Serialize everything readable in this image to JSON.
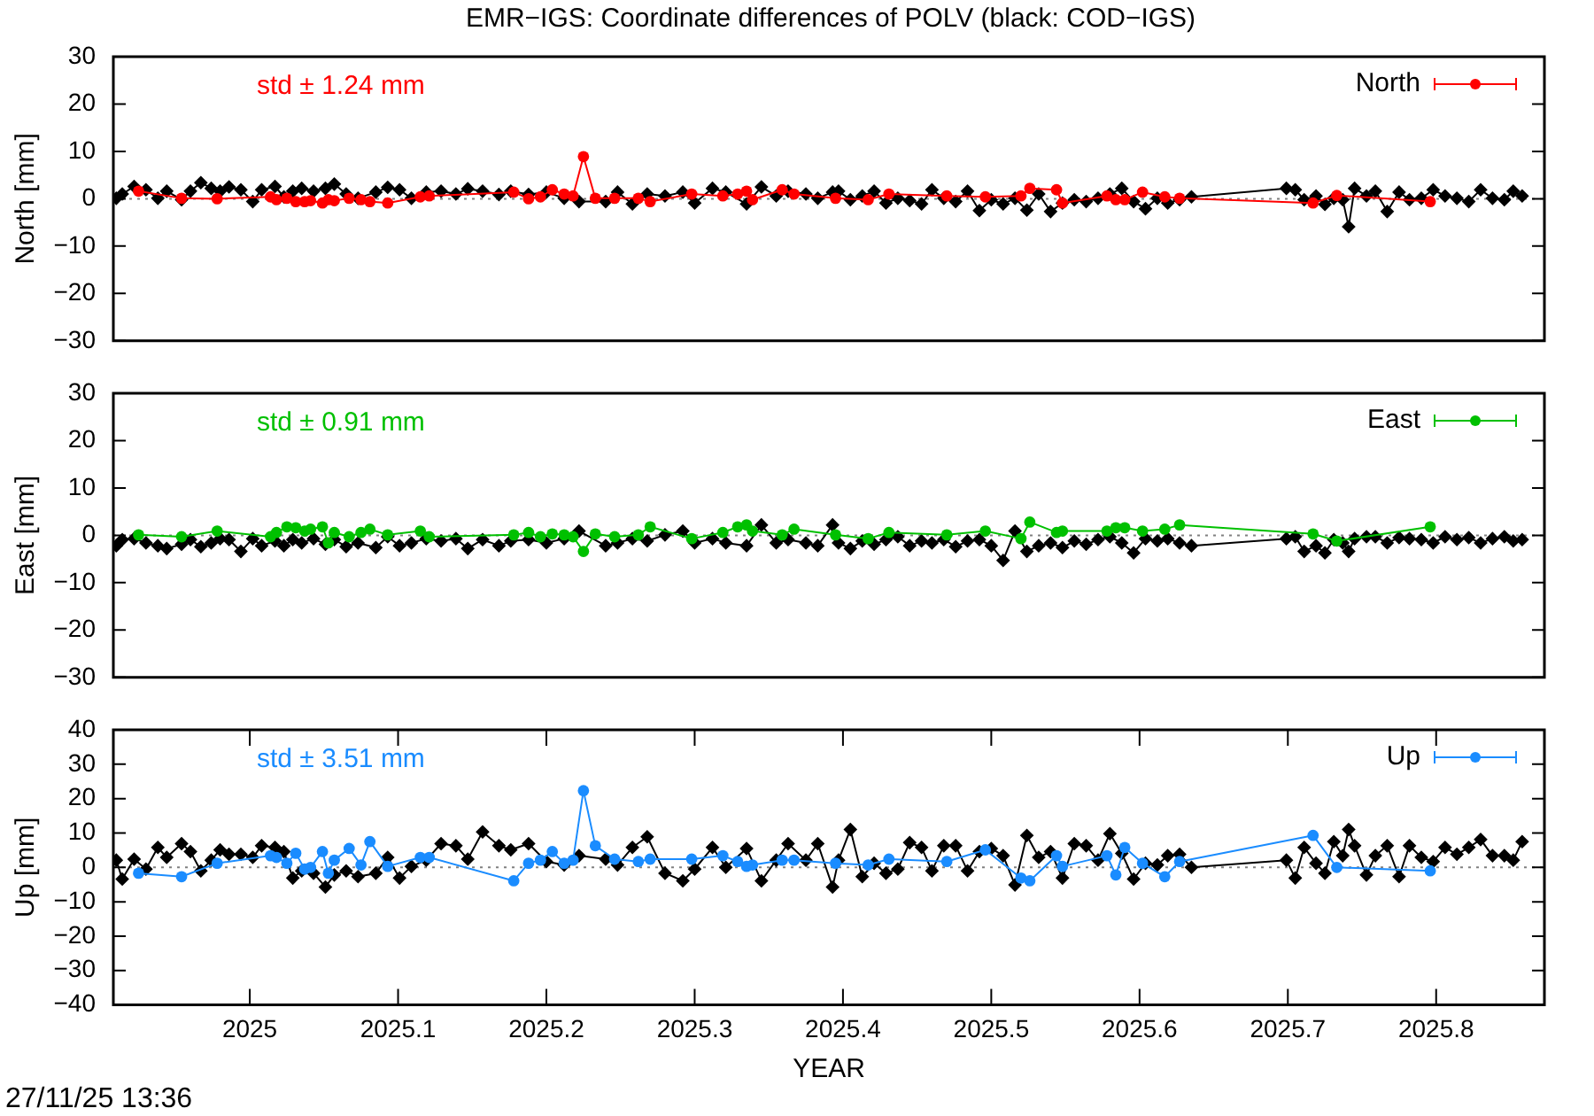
{
  "chart_data": [
    {
      "type": "line",
      "title": "EMR−IGS: Coordinate differences of POLV (black: COD−IGS)",
      "ylabel": "North [mm]",
      "annotations": [
        "std ± 1.24 mm"
      ],
      "xlim": [
        2024.908,
        2025.873
      ],
      "ylim": [
        -30,
        30
      ],
      "yticks": [
        {
          "value": -30,
          "label": "−30"
        },
        {
          "value": -20,
          "label": "−20"
        },
        {
          "value": -10,
          "label": "−10"
        },
        0,
        10,
        20,
        30
      ],
      "tick_labels": "y",
      "legend": "top right",
      "marker": "circle",
      "ref_lines": [
        {
          "axis": "y",
          "value": 0,
          "color": "#808080",
          "line_style": "dotted"
        }
      ],
      "series": [
        {
          "name": "North",
          "color": "#ff0000",
          "x": [
            2024.925,
            2024.954,
            2024.978,
            2025.014,
            2025.018,
            2025.025,
            2025.031,
            2025.037,
            2025.041,
            2025.049,
            2025.053,
            2025.057,
            2025.067,
            2025.075,
            2025.081,
            2025.093,
            2025.115,
            2025.121,
            2025.178,
            2025.188,
            2025.196,
            2025.204,
            2025.212,
            2025.218,
            2025.225,
            2025.233,
            2025.246,
            2025.262,
            2025.27,
            2025.298,
            2025.319,
            2025.329,
            2025.335,
            2025.339,
            2025.359,
            2025.367,
            2025.395,
            2025.417,
            2025.431,
            2025.47,
            2025.496,
            2025.52,
            2025.526,
            2025.544,
            2025.548,
            2025.578,
            2025.584,
            2025.59,
            2025.602,
            2025.617,
            2025.627,
            2025.717,
            2025.733,
            2025.796
          ],
          "values": [
            1.6,
            0.1,
            0.0,
            0.4,
            -0.2,
            0.1,
            -0.6,
            -0.6,
            -0.4,
            -0.9,
            -0.2,
            -0.4,
            0.1,
            -0.2,
            -0.6,
            -0.9,
            0.4,
            0.6,
            1.4,
            0.0,
            0.4,
            1.9,
            1.0,
            0.6,
            8.9,
            0.1,
            0.1,
            0.1,
            -0.6,
            1.0,
            0.6,
            1.0,
            1.6,
            -0.2,
            1.9,
            1.0,
            0.1,
            -0.2,
            1.0,
            0.6,
            0.4,
            0.6,
            2.2,
            1.9,
            -0.9,
            0.6,
            -0.2,
            -0.2,
            1.4,
            0.4,
            0.1,
            -0.9,
            0.7,
            -0.6
          ]
        },
        {
          "color": "#000000",
          "marker": "diamond",
          "x": [
            2024.91,
            2024.914,
            2024.922,
            2024.93,
            2024.938,
            2024.944,
            2024.954,
            2024.96,
            2024.967,
            2024.974,
            2024.98,
            2024.986,
            2024.994,
            2025.002,
            2025.008,
            2025.017,
            2025.023,
            2025.029,
            2025.035,
            2025.043,
            2025.051,
            2025.057,
            2025.065,
            2025.073,
            2025.085,
            2025.093,
            2025.101,
            2025.109,
            2025.119,
            2025.129,
            2025.139,
            2025.147,
            2025.157,
            2025.168,
            2025.176,
            2025.188,
            2025.2,
            2025.212,
            2025.222,
            2025.24,
            2025.248,
            2025.258,
            2025.268,
            2025.28,
            2025.292,
            2025.3,
            2025.312,
            2025.321,
            2025.335,
            2025.345,
            2025.355,
            2025.363,
            2025.375,
            2025.383,
            2025.393,
            2025.397,
            2025.405,
            2025.413,
            2025.421,
            2025.429,
            2025.437,
            2025.445,
            2025.453,
            2025.46,
            2025.468,
            2025.476,
            2025.484,
            2025.492,
            2025.5,
            2025.508,
            2025.516,
            2025.524,
            2025.532,
            2025.54,
            2025.548,
            2025.556,
            2025.564,
            2025.572,
            2025.58,
            2025.588,
            2025.596,
            2025.604,
            2025.612,
            2025.619,
            2025.627,
            2025.635,
            2025.699,
            2025.705,
            2025.711,
            2025.719,
            2025.725,
            2025.731,
            2025.737,
            2025.741,
            2025.745,
            2025.753,
            2025.759,
            2025.767,
            2025.775,
            2025.782,
            2025.79,
            2025.798,
            2025.806,
            2025.814,
            2025.822,
            2025.83,
            2025.838,
            2025.846,
            2025.852,
            2025.858
          ],
          "values": [
            0.1,
            1.0,
            2.6,
            1.9,
            0.1,
            1.6,
            -0.2,
            1.6,
            3.4,
            2.2,
            1.6,
            2.5,
            1.9,
            -0.6,
            1.9,
            2.6,
            0.4,
            1.6,
            2.2,
            1.6,
            2.2,
            3.1,
            1.0,
            0.1,
            1.4,
            2.4,
            1.9,
            0.1,
            1.4,
            1.6,
            1.0,
            2.1,
            1.6,
            0.9,
            1.6,
            0.9,
            1.4,
            0.1,
            -0.6,
            -0.6,
            1.4,
            -1.1,
            1.0,
            0.6,
            1.4,
            -0.9,
            2.2,
            1.4,
            -1.1,
            2.5,
            0.6,
            1.6,
            1.0,
            0.1,
            1.4,
            1.6,
            -0.2,
            0.6,
            1.6,
            -0.9,
            0.1,
            -0.4,
            -1.1,
            1.9,
            0.1,
            -0.6,
            1.6,
            -2.5,
            -0.2,
            -1.1,
            0.1,
            -2.4,
            1.0,
            -2.7,
            -0.9,
            -0.2,
            -0.6,
            0.1,
            1.0,
            2.2,
            -0.6,
            -2.1,
            0.1,
            -0.9,
            -0.2,
            0.4,
            2.2,
            1.9,
            -0.2,
            0.6,
            -1.2,
            0.1,
            -0.2,
            -5.9,
            2.2,
            0.6,
            1.6,
            -2.7,
            1.4,
            -0.2,
            0.1,
            1.9,
            0.6,
            0.1,
            -0.6,
            1.9,
            0.1,
            -0.2,
            1.6,
            0.6
          ]
        }
      ]
    },
    {
      "type": "line",
      "ylabel": "East [mm]",
      "annotations": [
        "std ± 0.91 mm"
      ],
      "xlim": [
        2024.908,
        2025.873
      ],
      "ylim": [
        -30,
        30
      ],
      "yticks": [
        {
          "value": -30,
          "label": "−30"
        },
        {
          "value": -20,
          "label": "−20"
        },
        {
          "value": -10,
          "label": "−10"
        },
        0,
        10,
        20,
        30
      ],
      "tick_labels": "y",
      "legend": "top right",
      "marker": "circle",
      "ref_lines": [
        {
          "axis": "y",
          "value": 0,
          "color": "#808080",
          "line_style": "dotted"
        }
      ],
      "series": [
        {
          "name": "East",
          "color": "#00c000",
          "x": [
            2024.925,
            2024.954,
            2024.978,
            2025.014,
            2025.018,
            2025.025,
            2025.031,
            2025.037,
            2025.041,
            2025.049,
            2025.053,
            2025.057,
            2025.067,
            2025.075,
            2025.081,
            2025.093,
            2025.115,
            2025.121,
            2025.178,
            2025.188,
            2025.196,
            2025.204,
            2025.212,
            2025.218,
            2025.225,
            2025.233,
            2025.246,
            2025.262,
            2025.27,
            2025.298,
            2025.319,
            2025.329,
            2025.335,
            2025.339,
            2025.359,
            2025.367,
            2025.395,
            2025.417,
            2025.431,
            2025.47,
            2025.496,
            2025.52,
            2025.526,
            2025.544,
            2025.548,
            2025.578,
            2025.584,
            2025.59,
            2025.602,
            2025.617,
            2025.627,
            2025.717,
            2025.733,
            2025.796
          ],
          "values": [
            0.1,
            -0.3,
            0.9,
            -0.3,
            0.6,
            1.8,
            1.6,
            0.9,
            1.3,
            1.8,
            -1.6,
            0.6,
            -0.3,
            0.6,
            1.3,
            0.1,
            0.9,
            -0.3,
            0.1,
            0.6,
            -0.3,
            0.3,
            0.1,
            -0.3,
            -3.4,
            0.3,
            -0.3,
            0.1,
            1.8,
            -0.7,
            0.6,
            1.8,
            2.2,
            0.9,
            0.1,
            1.3,
            0.1,
            -0.7,
            0.6,
            0.1,
            0.9,
            -0.7,
            2.8,
            0.6,
            0.9,
            0.9,
            1.6,
            1.6,
            0.9,
            1.3,
            2.2,
            0.3,
            -1.2,
            1.8
          ]
        },
        {
          "color": "#000000",
          "marker": "diamond",
          "x": [
            2024.91,
            2024.914,
            2024.922,
            2024.93,
            2024.938,
            2024.944,
            2024.954,
            2024.96,
            2024.967,
            2024.974,
            2024.98,
            2024.986,
            2024.994,
            2025.002,
            2025.008,
            2025.017,
            2025.023,
            2025.029,
            2025.035,
            2025.043,
            2025.051,
            2025.057,
            2025.065,
            2025.073,
            2025.085,
            2025.093,
            2025.101,
            2025.109,
            2025.119,
            2025.129,
            2025.139,
            2025.147,
            2025.157,
            2025.168,
            2025.176,
            2025.188,
            2025.2,
            2025.212,
            2025.222,
            2025.24,
            2025.248,
            2025.258,
            2025.268,
            2025.28,
            2025.292,
            2025.3,
            2025.312,
            2025.321,
            2025.335,
            2025.345,
            2025.355,
            2025.363,
            2025.375,
            2025.383,
            2025.393,
            2025.397,
            2025.405,
            2025.413,
            2025.421,
            2025.429,
            2025.437,
            2025.445,
            2025.453,
            2025.46,
            2025.468,
            2025.476,
            2025.484,
            2025.492,
            2025.5,
            2025.508,
            2025.516,
            2025.524,
            2025.532,
            2025.54,
            2025.548,
            2025.556,
            2025.564,
            2025.572,
            2025.58,
            2025.588,
            2025.596,
            2025.604,
            2025.612,
            2025.619,
            2025.627,
            2025.635,
            2025.699,
            2025.705,
            2025.711,
            2025.719,
            2025.725,
            2025.731,
            2025.737,
            2025.741,
            2025.745,
            2025.753,
            2025.759,
            2025.767,
            2025.775,
            2025.782,
            2025.79,
            2025.798,
            2025.806,
            2025.814,
            2025.822,
            2025.83,
            2025.838,
            2025.846,
            2025.852,
            2025.858
          ],
          "values": [
            -2.2,
            -0.9,
            -0.7,
            -1.6,
            -2.2,
            -2.8,
            -1.9,
            -0.9,
            -2.4,
            -1.6,
            -0.7,
            -0.9,
            -3.4,
            -0.7,
            -2.2,
            -1.2,
            -2.2,
            -0.9,
            -1.6,
            -0.7,
            -1.9,
            -0.9,
            -2.4,
            -1.6,
            -2.6,
            -0.3,
            -2.2,
            -1.6,
            -0.7,
            -1.2,
            -0.7,
            -2.8,
            -0.9,
            -2.2,
            -1.2,
            -0.9,
            -1.6,
            -0.7,
            0.9,
            -2.2,
            -1.6,
            -0.7,
            -1.2,
            0.1,
            0.9,
            -1.6,
            -0.7,
            -1.6,
            -2.2,
            2.2,
            -1.6,
            -0.9,
            -1.6,
            -2.2,
            2.2,
            -1.6,
            -2.8,
            -1.2,
            -1.9,
            -0.9,
            -0.3,
            -2.2,
            -1.2,
            -1.6,
            -0.9,
            -2.4,
            -1.2,
            -0.9,
            -2.2,
            -5.3,
            0.9,
            -3.4,
            -2.2,
            -1.6,
            -2.6,
            -1.2,
            -1.9,
            -0.9,
            -0.3,
            -1.6,
            -3.7,
            -0.7,
            -1.2,
            -0.7,
            -1.6,
            -2.2,
            -0.7,
            -0.3,
            -3.4,
            -2.2,
            -3.7,
            -0.9,
            -1.6,
            -3.4,
            -0.7,
            -0.3,
            -0.3,
            -1.6,
            -0.5,
            -0.7,
            -0.9,
            -1.6,
            -0.3,
            -0.9,
            -0.5,
            -1.6,
            -0.7,
            -0.3,
            -1.2,
            -0.9
          ]
        }
      ]
    },
    {
      "type": "line",
      "xlabel": "YEAR",
      "ylabel": "Up [mm]",
      "annotations": [
        "std ± 3.51 mm",
        "27/11/25 13:36"
      ],
      "xlim": [
        2024.908,
        2025.873
      ],
      "xticks": [
        2025,
        2025.1,
        2025.2,
        2025.3,
        2025.4,
        2025.5,
        2025.6,
        2025.7,
        2025.8
      ],
      "ylim": [
        -40,
        40
      ],
      "yticks": [
        {
          "value": -40,
          "label": "−40"
        },
        {
          "value": -30,
          "label": "−30"
        },
        {
          "value": -20,
          "label": "−20"
        },
        {
          "value": -10,
          "label": "−10"
        },
        0,
        10,
        20,
        30,
        40
      ],
      "legend": "top right",
      "marker": "circle",
      "ref_lines": [
        {
          "axis": "y",
          "value": 0,
          "color": "#808080",
          "line_style": "dotted"
        }
      ],
      "series": [
        {
          "name": "Up",
          "color": "#1a8cff",
          "x": [
            2024.925,
            2024.954,
            2024.978,
            2025.014,
            2025.018,
            2025.025,
            2025.031,
            2025.037,
            2025.041,
            2025.049,
            2025.053,
            2025.057,
            2025.067,
            2025.075,
            2025.081,
            2025.093,
            2025.115,
            2025.121,
            2025.178,
            2025.188,
            2025.196,
            2025.204,
            2025.212,
            2025.218,
            2025.225,
            2025.233,
            2025.246,
            2025.262,
            2025.27,
            2025.298,
            2025.319,
            2025.329,
            2025.335,
            2025.339,
            2025.359,
            2025.367,
            2025.395,
            2025.417,
            2025.431,
            2025.47,
            2025.496,
            2025.52,
            2025.526,
            2025.544,
            2025.548,
            2025.578,
            2025.584,
            2025.59,
            2025.602,
            2025.617,
            2025.627,
            2025.717,
            2025.733,
            2025.796
          ],
          "values": [
            -1.7,
            -2.7,
            1.2,
            3.4,
            2.9,
            1.2,
            4.1,
            -0.5,
            0.0,
            4.6,
            -1.7,
            2.1,
            5.5,
            0.7,
            7.5,
            0.3,
            2.9,
            2.9,
            -3.9,
            1.2,
            2.1,
            4.6,
            1.2,
            2.1,
            22.3,
            6.3,
            2.4,
            1.7,
            2.4,
            2.4,
            3.4,
            1.7,
            0.3,
            0.7,
            2.1,
            2.1,
            1.2,
            0.7,
            2.4,
            1.7,
            5.1,
            -3.1,
            -3.9,
            3.4,
            0.3,
            3.4,
            -2.2,
            5.8,
            1.2,
            -2.7,
            1.7,
            9.3,
            0.0,
            -1.0
          ]
        },
        {
          "color": "#000000",
          "marker": "diamond",
          "x": [
            2024.91,
            2024.914,
            2024.922,
            2024.93,
            2024.938,
            2024.944,
            2024.954,
            2024.96,
            2024.967,
            2024.974,
            2024.98,
            2024.986,
            2024.994,
            2025.002,
            2025.008,
            2025.017,
            2025.023,
            2025.029,
            2025.035,
            2025.043,
            2025.051,
            2025.057,
            2025.065,
            2025.073,
            2025.085,
            2025.093,
            2025.101,
            2025.109,
            2025.119,
            2025.129,
            2025.139,
            2025.147,
            2025.157,
            2025.168,
            2025.176,
            2025.188,
            2025.2,
            2025.212,
            2025.222,
            2025.24,
            2025.248,
            2025.258,
            2025.268,
            2025.28,
            2025.292,
            2025.3,
            2025.312,
            2025.321,
            2025.335,
            2025.345,
            2025.355,
            2025.363,
            2025.375,
            2025.383,
            2025.393,
            2025.397,
            2025.405,
            2025.413,
            2025.421,
            2025.429,
            2025.437,
            2025.445,
            2025.453,
            2025.46,
            2025.468,
            2025.476,
            2025.484,
            2025.492,
            2025.5,
            2025.508,
            2025.516,
            2025.524,
            2025.532,
            2025.54,
            2025.548,
            2025.556,
            2025.564,
            2025.572,
            2025.58,
            2025.588,
            2025.596,
            2025.604,
            2025.612,
            2025.619,
            2025.627,
            2025.635,
            2025.699,
            2025.705,
            2025.711,
            2025.719,
            2025.725,
            2025.731,
            2025.737,
            2025.741,
            2025.745,
            2025.753,
            2025.759,
            2025.767,
            2025.775,
            2025.782,
            2025.79,
            2025.798,
            2025.806,
            2025.814,
            2025.822,
            2025.83,
            2025.838,
            2025.846,
            2025.852,
            2025.858
          ],
          "values": [
            2.1,
            -3.4,
            2.4,
            -0.5,
            5.8,
            2.9,
            6.9,
            4.6,
            -1.0,
            2.1,
            5.1,
            3.8,
            3.8,
            2.9,
            6.3,
            5.8,
            4.6,
            -3.1,
            -1.0,
            -1.7,
            -5.7,
            -2.2,
            -1.0,
            -2.7,
            -1.7,
            2.9,
            -3.1,
            0.3,
            2.1,
            6.9,
            6.3,
            2.4,
            10.3,
            6.3,
            5.1,
            6.9,
            1.7,
            0.7,
            3.4,
            2.4,
            0.7,
            5.8,
            8.9,
            -1.7,
            -3.9,
            -0.5,
            5.8,
            0.0,
            5.5,
            -3.9,
            2.1,
            6.9,
            2.1,
            6.9,
            -5.7,
            2.1,
            11.0,
            -2.7,
            1.2,
            -1.7,
            -0.5,
            7.2,
            5.8,
            -1.0,
            6.3,
            6.3,
            -1.0,
            4.6,
            5.5,
            3.4,
            -5.1,
            9.3,
            2.9,
            4.6,
            -3.1,
            6.9,
            6.3,
            2.1,
            9.8,
            4.1,
            -3.4,
            1.2,
            0.7,
            3.4,
            3.8,
            0.0,
            2.1,
            -3.1,
            5.8,
            1.2,
            -1.7,
            7.5,
            3.4,
            11.0,
            6.3,
            -2.2,
            3.4,
            6.3,
            -2.7,
            6.3,
            2.9,
            1.7,
            5.8,
            3.8,
            5.8,
            8.1,
            3.4,
            3.4,
            2.1,
            7.5
          ]
        }
      ]
    }
  ]
}
